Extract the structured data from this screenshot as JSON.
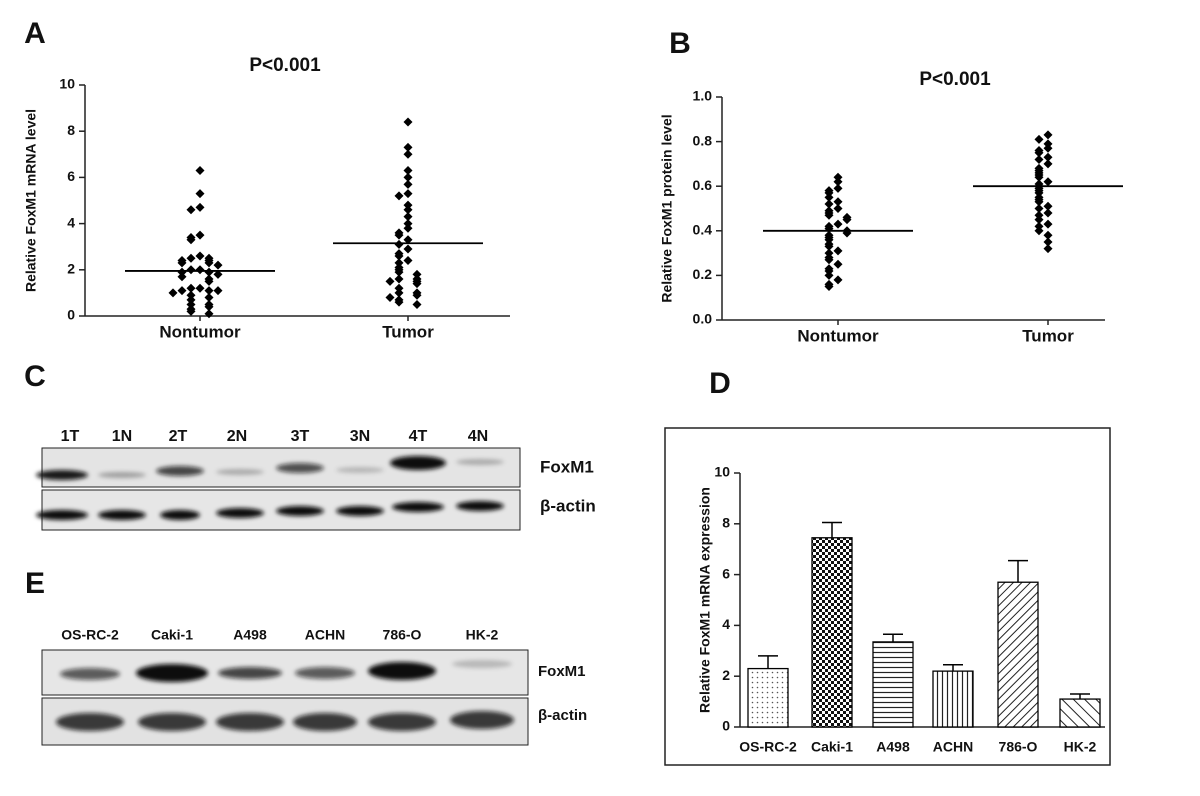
{
  "chart_data": [
    {
      "type": "dot",
      "panel": "A",
      "title": "P<0.001",
      "ylabel": "Relative FoxM1 mRNA level",
      "categories": [
        "Nontumor",
        "Tumor"
      ],
      "values": [
        [
          6.3,
          5.3,
          4.7,
          4.6,
          3.5,
          3.4,
          3.3,
          2.6,
          2.5,
          2.5,
          2.4,
          2.4,
          2.3,
          2.3,
          2.2,
          2.0,
          2.0,
          1.9,
          1.9,
          1.8,
          1.7,
          1.6,
          1.5,
          1.2,
          1.2,
          1.1,
          1.1,
          1.1,
          1.0,
          0.9,
          0.8,
          0.7,
          0.5,
          0.5,
          0.4,
          0.3,
          0.2,
          0.1
        ],
        [
          8.4,
          7.3,
          7.0,
          6.3,
          6.0,
          5.7,
          5.3,
          5.2,
          4.8,
          4.6,
          4.3,
          4.0,
          3.8,
          3.6,
          3.5,
          3.3,
          3.1,
          2.9,
          2.7,
          2.6,
          2.4,
          2.3,
          2.1,
          2.0,
          1.9,
          1.8,
          1.6,
          1.6,
          1.5,
          1.5,
          1.4,
          1.2,
          1.0,
          1.0,
          0.9,
          0.8,
          0.7,
          0.6,
          0.5
        ]
      ],
      "center_lines": [
        1.95,
        3.15
      ],
      "ylim": [
        0,
        10
      ],
      "yticks": [
        0,
        2,
        4,
        6,
        8,
        10
      ],
      "color": "#000000"
    },
    {
      "type": "dot",
      "panel": "B",
      "title": "P<0.001",
      "ylabel": "Relative FoxM1 protein level",
      "categories": [
        "Nontumor",
        "Tumor"
      ],
      "values": [
        [
          0.64,
          0.62,
          0.59,
          0.58,
          0.57,
          0.55,
          0.53,
          0.52,
          0.5,
          0.49,
          0.48,
          0.47,
          0.46,
          0.45,
          0.43,
          0.42,
          0.41,
          0.4,
          0.39,
          0.38,
          0.37,
          0.36,
          0.34,
          0.33,
          0.31,
          0.3,
          0.28,
          0.27,
          0.25,
          0.23,
          0.22,
          0.2,
          0.18,
          0.16,
          0.15
        ],
        [
          0.83,
          0.81,
          0.79,
          0.77,
          0.76,
          0.75,
          0.73,
          0.72,
          0.7,
          0.68,
          0.67,
          0.66,
          0.65,
          0.64,
          0.62,
          0.61,
          0.6,
          0.59,
          0.58,
          0.57,
          0.55,
          0.54,
          0.53,
          0.51,
          0.5,
          0.48,
          0.47,
          0.45,
          0.43,
          0.42,
          0.4,
          0.38,
          0.35,
          0.32
        ]
      ],
      "center_lines": [
        0.4,
        0.6
      ],
      "ylim": [
        0,
        1
      ],
      "yticks": [
        {
          "value": 0,
          "label": "0.0"
        },
        {
          "value": 0.2,
          "label": "0.2"
        },
        {
          "value": 0.4,
          "label": "0.4"
        },
        {
          "value": 0.6,
          "label": "0.6"
        },
        {
          "value": 0.8,
          "label": "0.8"
        },
        {
          "value": 1,
          "label": "1.0"
        }
      ],
      "color": "#000000"
    },
    {
      "type": "bar",
      "panel": "D",
      "ylabel": "Relative FoxM1 mRNA expression",
      "categories": [
        "OS-RC-2",
        "Caki-1",
        "A498",
        "ACHN",
        "786-O",
        "HK-2"
      ],
      "values": [
        2.3,
        7.45,
        3.35,
        2.2,
        5.7,
        1.1
      ],
      "errors": [
        0.5,
        0.6,
        0.3,
        0.25,
        0.85,
        0.2
      ],
      "patterns": [
        "dots",
        "checker",
        "hlines",
        "vlines",
        "diag",
        "bdiag"
      ],
      "ylim": [
        0,
        10
      ],
      "yticks": [
        0,
        2,
        4,
        6,
        8,
        10
      ],
      "color": "#000000"
    }
  ],
  "blots": [
    {
      "panel": "C",
      "lanes": [
        "1T",
        "1N",
        "2T",
        "2N",
        "3T",
        "3N",
        "4T",
        "4N"
      ],
      "rows": [
        "FoxM1",
        "β-actin"
      ]
    },
    {
      "panel": "E",
      "lanes": [
        "OS-RC-2",
        "Caki-1",
        "A498",
        "ACHN",
        "786-O",
        "HK-2"
      ],
      "rows": [
        "FoxM1",
        "β-actin"
      ]
    }
  ]
}
